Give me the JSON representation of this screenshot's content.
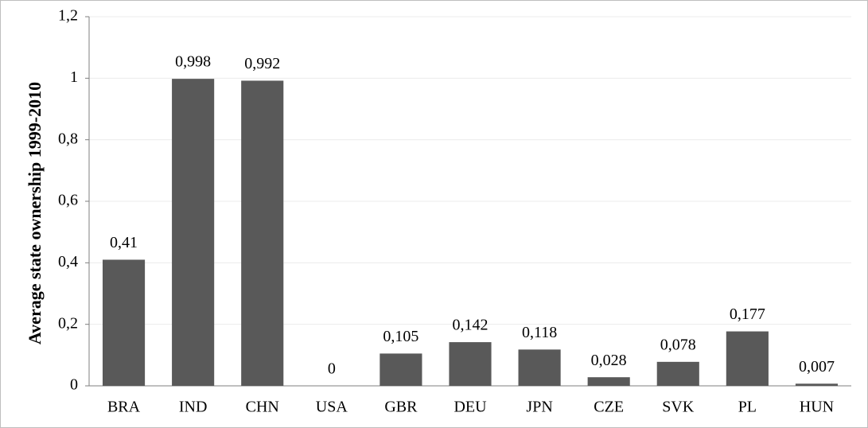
{
  "chart_data": {
    "type": "bar",
    "y_label": "Average state ownership 1999-2010",
    "categories": [
      "BRA",
      "IND",
      "CHN",
      "USA",
      "GBR",
      "DEU",
      "JPN",
      "CZE",
      "SVK",
      "PL",
      "HUN"
    ],
    "values": [
      0.41,
      0.998,
      0.992,
      0,
      0.105,
      0.142,
      0.118,
      0.028,
      0.078,
      0.177,
      0.007
    ],
    "value_labels": [
      "0,41",
      "0,998",
      "0,992",
      "0",
      "0,105",
      "0,142",
      "0,118",
      "0,028",
      "0,078",
      "0,177",
      "0,007"
    ],
    "color": "#595959",
    "ylim": [
      0,
      1.2
    ],
    "yticks": [
      0,
      {
        "value": 0.2,
        "label": "0,2"
      },
      {
        "value": 0.4,
        "label": "0,4"
      },
      {
        "value": 0.6,
        "label": "0,6"
      },
      {
        "value": 0.8,
        "label": "0,8"
      },
      1,
      {
        "value": 1.2,
        "label": "1,2"
      }
    ],
    "grid": true
  }
}
